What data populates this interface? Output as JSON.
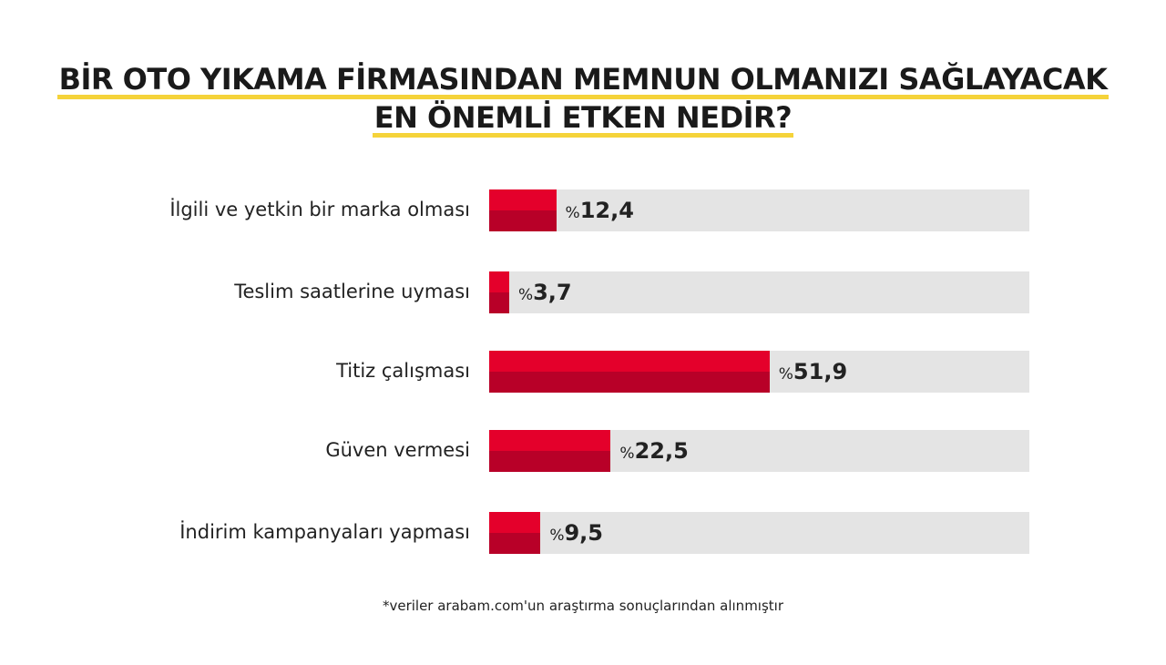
{
  "chart_data": {
    "type": "bar",
    "orientation": "horizontal",
    "title_lines": [
      "BİR OTO YIKAMA FİRMASINDAN MEMNUN OLMANIZI SAĞLAYACAK",
      "EN ÖNEMLİ ETKEN NEDİR?"
    ],
    "categories": [
      "İlgili ve yetkin bir marka olması",
      "Teslim saatlerine uyması",
      "Titiz çalışması",
      "Güven vermesi",
      "İndirim kampanyaları yapması"
    ],
    "values": [
      12.4,
      3.7,
      51.9,
      22.5,
      9.5
    ],
    "value_labels": [
      "12,4",
      "3,7",
      "51,9",
      "22,5",
      "9,5"
    ],
    "value_prefix": "%",
    "xlim": [
      0,
      100
    ],
    "grid": false,
    "footnote": "*veriler arabam.com'un araştırma sonuçlarından alınmıştır",
    "colors": {
      "bar_top": "#e4002b",
      "bar_bottom": "#b80028",
      "track": "#e4e4e4",
      "underline": "#f5d33a"
    }
  }
}
